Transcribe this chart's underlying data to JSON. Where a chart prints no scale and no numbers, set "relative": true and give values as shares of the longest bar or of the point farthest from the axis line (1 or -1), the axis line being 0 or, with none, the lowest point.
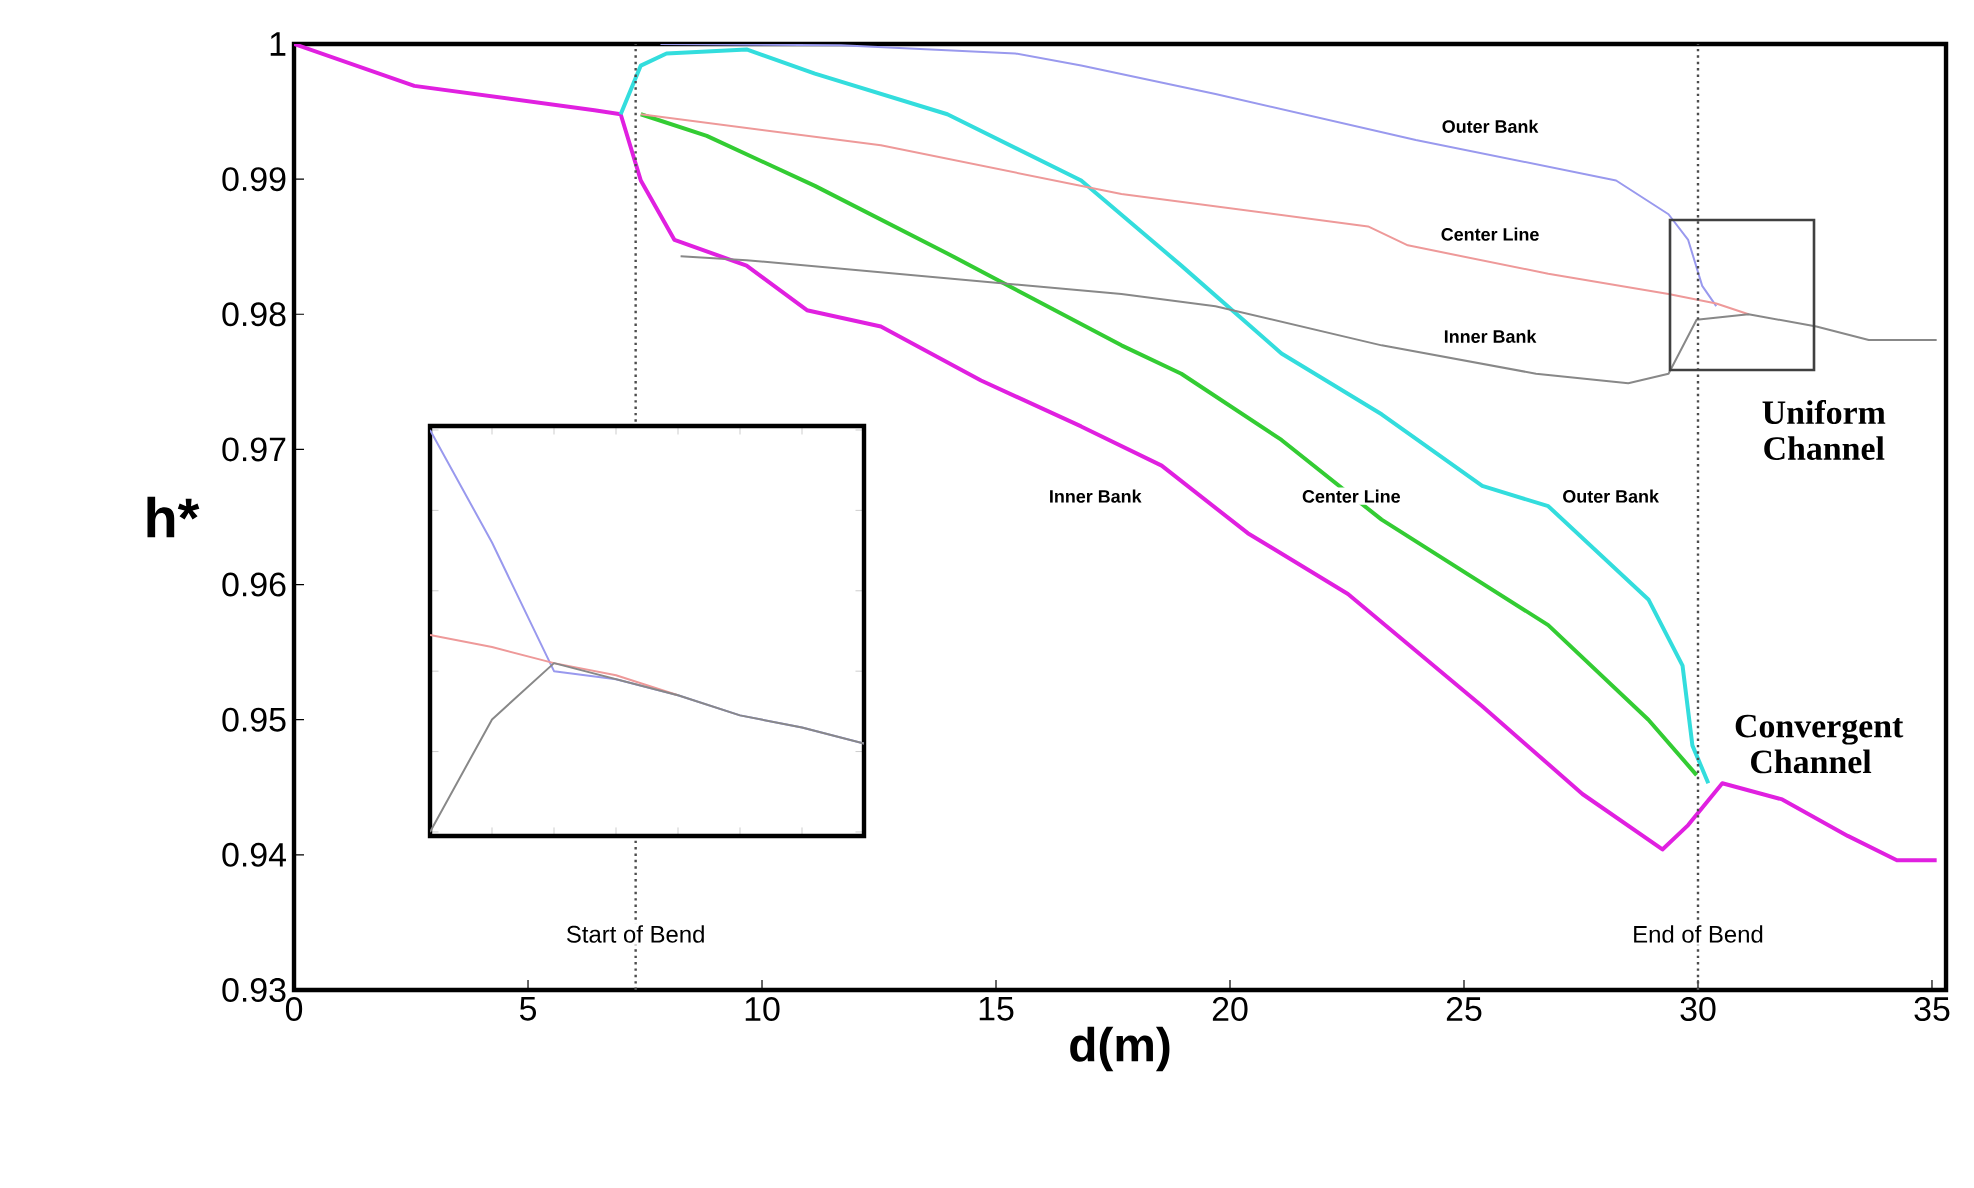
{
  "chart_data": [
    {
      "type": "line",
      "xlabel": "d(m)",
      "ylabel": "h*",
      "xlim": [
        0,
        35.3
      ],
      "ylim": [
        0.93,
        1
      ],
      "xticks": [
        0,
        5,
        10,
        15,
        20,
        25,
        30,
        35
      ],
      "yticks": [
        0.93,
        0.94,
        0.95,
        0.96,
        0.97,
        0.98,
        0.99,
        1
      ],
      "grid": false,
      "series": [
        {
          "color": "#e020e0",
          "x": [
            0,
            2.57,
            6.42,
            6.98,
            7.41,
            8.13,
            9.67,
            10.96,
            12.54,
            14.68,
            16.82,
            18.54,
            20.38,
            22.52,
            25.39,
            27.53,
            29.24,
            29.79,
            30.52,
            31.8,
            33.2,
            34.25,
            35.1
          ],
          "values": [
            1.0,
            0.9969,
            0.9951,
            0.9948,
            0.9899,
            0.9855,
            0.9836,
            0.9803,
            0.9791,
            0.9751,
            0.9717,
            0.9688,
            0.9638,
            0.9593,
            0.951,
            0.9445,
            0.9404,
            0.9422,
            0.9453,
            0.9441,
            0.9414,
            0.9396,
            0.9396
          ]
        },
        {
          "color": "#33cc33",
          "x": [
            7.41,
            8.82,
            11.13,
            13.96,
            17.68,
            18.96,
            21.1,
            23.24,
            26.8,
            28.94,
            29.97
          ],
          "values": [
            0.9948,
            0.9932,
            0.9895,
            0.9845,
            0.9777,
            0.9756,
            0.9707,
            0.9648,
            0.957,
            0.95,
            0.9459
          ]
        },
        {
          "color": "#33dddd",
          "x": [
            6.98,
            7.41,
            7.96,
            9.67,
            11.13,
            13.96,
            16.82,
            18.96,
            21.1,
            23.24,
            25.39,
            26.8,
            28.94,
            29.67,
            29.88,
            30.22
          ],
          "values": [
            0.9948,
            0.9984,
            0.9993,
            0.9996,
            0.9978,
            0.9948,
            0.9899,
            0.9836,
            0.9771,
            0.9726,
            0.9673,
            0.9658,
            0.9589,
            0.954,
            0.9481,
            0.9453
          ]
        },
        {
          "color": "#9999ee",
          "x": [
            7.83,
            11.69,
            15.41,
            16.82,
            19.69,
            23.97,
            28.25,
            29.37,
            29.79,
            30.09,
            30.39
          ],
          "values": [
            1.0,
            0.9999,
            0.9993,
            0.9984,
            0.9963,
            0.9929,
            0.9899,
            0.9874,
            0.9855,
            0.9821,
            0.9806
          ]
        },
        {
          "color": "#ee9999",
          "x": [
            7.41,
            12.54,
            17.68,
            22.95,
            23.8,
            26.8,
            29.37,
            30.39,
            31.08
          ],
          "values": [
            0.9948,
            0.9925,
            0.9889,
            0.9865,
            0.9851,
            0.983,
            0.9815,
            0.9808,
            0.98
          ]
        },
        {
          "color": "#888888",
          "x": [
            8.26,
            9.67,
            17.68,
            19.69,
            23.24,
            26.54,
            28.51,
            29.37,
            29.97,
            31.08,
            32.53,
            33.65,
            35.1
          ],
          "values": [
            0.9843,
            0.984,
            0.9815,
            0.9806,
            0.9777,
            0.9756,
            0.9749,
            0.9756,
            0.9796,
            0.98,
            0.9791,
            0.9781,
            0.9781
          ]
        }
      ],
      "ref_lines": [
        {
          "axis": "x",
          "value": 7.3,
          "label": "Start of Bend",
          "line_style": "dotted"
        },
        {
          "axis": "x",
          "value": 30,
          "label": "End of Bend",
          "line_style": "dotted"
        }
      ],
      "annotations": [
        "Outer Bank",
        "Center Line",
        "Inner Bank",
        "Inner Bank",
        "Center Line",
        "Outer Bank",
        "Uniform Channel",
        "Convergent Channel"
      ]
    },
    {
      "type": "line",
      "relative": true,
      "categories": [
        null,
        null,
        null,
        null,
        null,
        null,
        null,
        null
      ],
      "series": [
        {
          "color": "#9999ee",
          "values": [
            1,
            0.72,
            0.4,
            0.38,
            0.34,
            0.29,
            0.26,
            0.22
          ]
        },
        {
          "color": "#ee9999",
          "values": [
            0.49,
            0.46,
            0.42,
            0.39,
            0.34,
            null,
            null,
            null
          ]
        },
        {
          "color": "#888888",
          "values": [
            0,
            0.28,
            0.42,
            0.38,
            0.34,
            0.29,
            0.26,
            0.22
          ]
        }
      ]
    }
  ]
}
